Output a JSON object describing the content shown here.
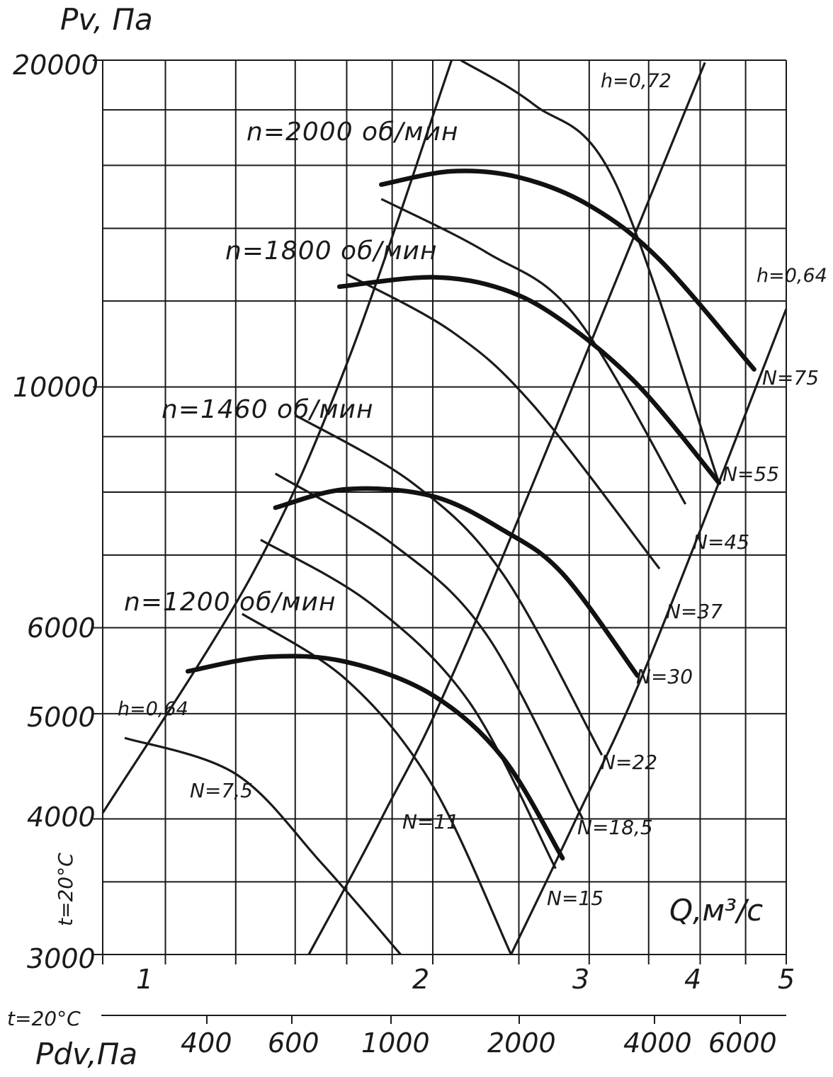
{
  "chart_data": {
    "type": "line",
    "title": "",
    "ylabel": "Pv, Па",
    "xlabel": "Q,м³/с",
    "x2label": "Pdv,Па",
    "temperature_label": "t=20°C",
    "y_scale": "log",
    "x_scale": "log",
    "ylim": [
      3000,
      20000
    ],
    "xlim": [
      0.85,
      5
    ],
    "y_tick_labels": [
      "3000",
      "4000",
      "5000",
      "6000",
      "10000",
      "20000"
    ],
    "x_tick_labels": [
      "1",
      "2",
      "3",
      "4",
      "5"
    ],
    "pdv_tick_labels": [
      "400",
      "600",
      "1000",
      "2000",
      "4000",
      "6000"
    ],
    "speed_curves": [
      {
        "name": "n=1200 об/мин",
        "x": [
          1.06,
          1.3,
          1.6,
          2.0,
          2.4,
          2.8
        ],
        "y": [
          5470,
          5640,
          5580,
          5200,
          4550,
          3680
        ]
      },
      {
        "name": "n=1460 об/мин",
        "x": [
          1.33,
          1.6,
          2.0,
          2.4,
          2.8,
          3.4
        ],
        "y": [
          7740,
          8050,
          7930,
          7380,
          6730,
          5420
        ]
      },
      {
        "name": "n=1800 об/мин",
        "x": [
          1.57,
          2.0,
          2.4,
          2.8,
          3.4,
          4.2
        ],
        "y": [
          12370,
          12620,
          12300,
          11500,
          10050,
          8160
        ]
      },
      {
        "name": "n=2000 об/мин",
        "x": [
          1.75,
          2.1,
          2.5,
          3.0,
          3.6,
          4.6
        ],
        "y": [
          15360,
          15800,
          15600,
          14700,
          13100,
          10380
        ]
      }
    ],
    "power_curves": [
      {
        "label": "N=7,5",
        "x": [
          0.9,
          1.2,
          1.5,
          1.84
        ],
        "y": [
          4750,
          4400,
          3640,
          3000
        ]
      },
      {
        "label": "N=11",
        "x": [
          1.22,
          1.6,
          2.0,
          2.45
        ],
        "y": [
          6180,
          5370,
          4290,
          3000
        ]
      },
      {
        "label": "N=15",
        "x": [
          1.28,
          1.7,
          2.2,
          2.75
        ],
        "y": [
          7230,
          6320,
          5120,
          3600
        ]
      },
      {
        "label": "N=18,5",
        "x": [
          1.33,
          1.8,
          2.3,
          2.95
        ],
        "y": [
          8320,
          7170,
          5910,
          4000
        ]
      },
      {
        "label": "N=22",
        "x": [
          1.4,
          1.9,
          2.4,
          3.1
        ],
        "y": [
          9420,
          8150,
          6720,
          4580
        ]
      },
      {
        "label": "N=37",
        "x": [
          1.6,
          2.1,
          2.6,
          3.6
        ],
        "y": [
          12700,
          11250,
          9600,
          6800
        ]
      },
      {
        "label": "N=45",
        "x": [
          1.75,
          2.3,
          2.9,
          3.85
        ],
        "y": [
          14900,
          13300,
          11600,
          7800
        ]
      },
      {
        "label": "N=55",
        "x": [
          2.15,
          2.6,
          3.2,
          4.2
        ],
        "y": [
          20000,
          18200,
          15500,
          8160
        ]
      }
    ],
    "efficiency_lines": [
      {
        "label": "h=0,64",
        "x": [
          0.85,
          1.25,
          1.6,
          2.1
        ],
        "y": [
          4050,
          6700,
          10500,
          20000
        ]
      },
      {
        "label": "h=0,72",
        "x": [
          1.45,
          1.75,
          2.2,
          4.05
        ],
        "y": [
          3000,
          4000,
          5900,
          19900
        ]
      },
      {
        "label": "h=0,64",
        "x": [
          2.45,
          2.9,
          3.5,
          5.0
        ],
        "y": [
          3000,
          4000,
          5600,
          11800
        ]
      }
    ],
    "speed_labels": [
      "n=2000 об/мин",
      "n=1800 об/мин",
      "n=1460 об/мин",
      "n=1200 об/мин"
    ],
    "power_labels": [
      "N=75",
      "N=55",
      "N=45",
      "N=37",
      "N=30",
      "N=22",
      "N=18,5",
      "N=15",
      "N=11",
      "N=7,5"
    ],
    "grid": true
  }
}
